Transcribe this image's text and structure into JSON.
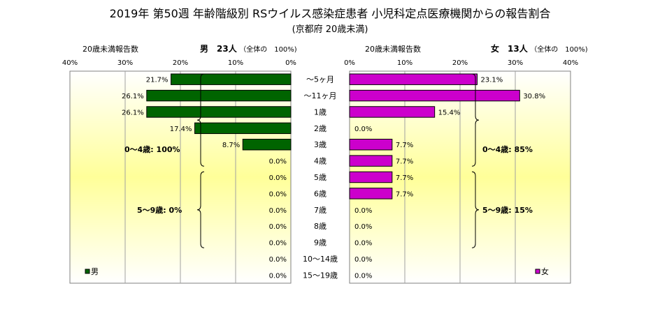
{
  "title": "2019年 第50週 年齢階級別 RSウイルス感染症患者 小児科定点医療機関からの報告割合",
  "subtitle": "(京都府 20歳未満)",
  "chart_data": {
    "type": "bar",
    "categories": [
      "～5ヶ月",
      "～11ヶ月",
      "1歳",
      "2歳",
      "3歳",
      "4歳",
      "5歳",
      "6歳",
      "7歳",
      "8歳",
      "9歳",
      "10～14歳",
      "15～19歳"
    ],
    "xlim": [
      0,
      40
    ],
    "ticks": [
      "40%",
      "30%",
      "20%",
      "10%",
      "0%",
      "10%",
      "20%",
      "30%",
      "40%"
    ],
    "series": [
      {
        "name": "男",
        "color": "#006400",
        "values": [
          21.7,
          26.1,
          26.1,
          17.4,
          8.7,
          0.0,
          0.0,
          0.0,
          0.0,
          0.0,
          0.0,
          0.0,
          0.0
        ],
        "labels": [
          "21.7%",
          "26.1%",
          "26.1%",
          "17.4%",
          "8.7%",
          "0.0%",
          "0.0%",
          "0.0%",
          "0.0%",
          "0.0%",
          "0.0%",
          "0.0%",
          "0.0%"
        ]
      },
      {
        "name": "女",
        "color": "#cc00cc",
        "values": [
          23.1,
          30.8,
          15.4,
          0.0,
          7.7,
          7.7,
          7.7,
          7.7,
          0.0,
          0.0,
          0.0,
          0.0,
          0.0
        ],
        "labels": [
          "23.1%",
          "30.8%",
          "15.4%",
          "0.0%",
          "7.7%",
          "7.7%",
          "7.7%",
          "7.7%",
          "0.0%",
          "0.0%",
          "0.0%",
          "0.0%",
          "0.0%"
        ]
      }
    ],
    "left_panel": {
      "xlabel": "20歳未満報告数",
      "header": "男　23人",
      "header_note": "（全体の　100%)",
      "annotations": [
        "0～4歳: 100%",
        "5～9歳: 0%"
      ]
    },
    "right_panel": {
      "xlabel": "20歳未満報告数",
      "header": "女　13人",
      "header_note": "（全体の　100%)",
      "annotations": [
        "0～4歳: 85%",
        "5～9歳: 15%"
      ]
    },
    "legend": [
      "男",
      "女"
    ],
    "grid": true
  }
}
